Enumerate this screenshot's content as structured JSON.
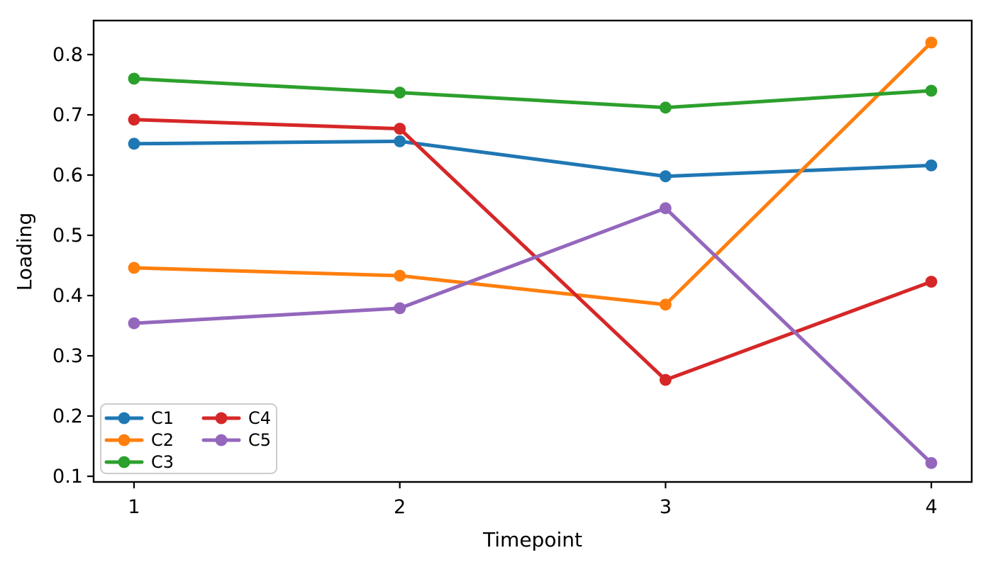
{
  "figure": {
    "background": "#ffffff",
    "axes_edge_color": "#000000"
  },
  "chart_data": {
    "type": "line",
    "title": "",
    "xlabel": "Timepoint",
    "ylabel": "Loading",
    "x": [
      1,
      2,
      3,
      4
    ],
    "series": [
      {
        "name": "C1",
        "color": "#1f77b4",
        "values": [
          0.652,
          0.656,
          0.598,
          0.616
        ]
      },
      {
        "name": "C2",
        "color": "#ff7f0e",
        "values": [
          0.446,
          0.433,
          0.385,
          0.82
        ]
      },
      {
        "name": "C3",
        "color": "#2ca02c",
        "values": [
          0.76,
          0.737,
          0.712,
          0.74
        ]
      },
      {
        "name": "C4",
        "color": "#d62728",
        "values": [
          0.692,
          0.677,
          0.26,
          0.423
        ]
      },
      {
        "name": "C5",
        "color": "#9467bd",
        "values": [
          0.354,
          0.379,
          0.545,
          0.122
        ]
      }
    ],
    "xticks": {
      "values": [
        1,
        2,
        3,
        4
      ],
      "labels": [
        "1",
        "2",
        "3",
        "4"
      ]
    },
    "yticks": {
      "values": [
        0.1,
        0.2,
        0.3,
        0.4,
        0.5,
        0.6,
        0.7,
        0.8
      ],
      "labels": [
        "0.1",
        "0.2",
        "0.3",
        "0.4",
        "0.5",
        "0.6",
        "0.7",
        "0.8"
      ]
    },
    "xlim": [
      0.848,
      4.152
    ],
    "ylim": [
      0.0906,
      0.8565
    ],
    "grid": false,
    "legend": {
      "position": "lower-left",
      "ncol": 2,
      "entries": [
        "C1",
        "C2",
        "C3",
        "C4",
        "C5"
      ],
      "border_color": "#cccccc",
      "background": "#ffffff"
    }
  }
}
